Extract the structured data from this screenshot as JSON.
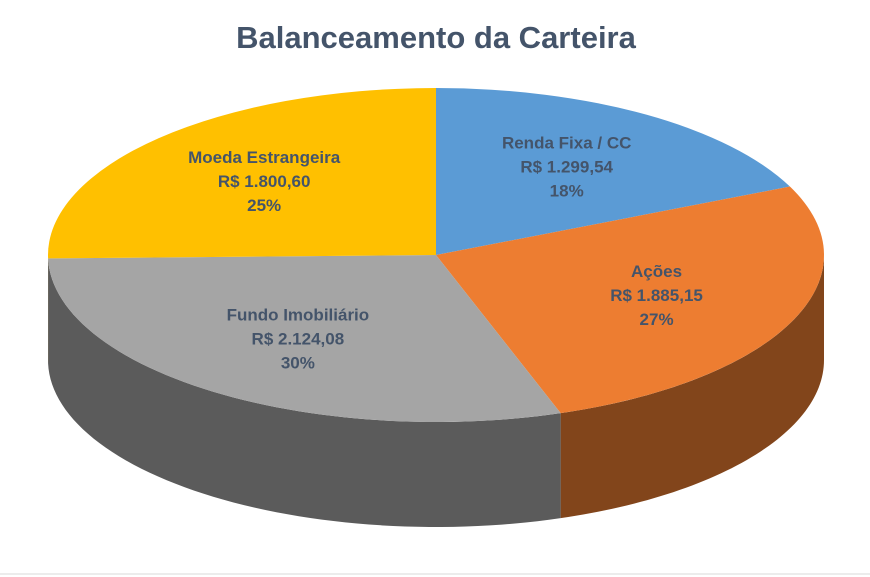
{
  "chart_data": {
    "type": "pie3d",
    "title": "Balanceamento da Carteira",
    "categories": [
      "Renda Fixa / CC",
      "Ações",
      "Fundo Imobiliário",
      "Moeda Estrangeira"
    ],
    "values": [
      1299.54,
      1885.15,
      2124.08,
      1800.6
    ],
    "value_labels": [
      "R$ 1.299,54",
      "R$ 1.885,15",
      "R$ 2.124,08",
      "R$ 1.800,60"
    ],
    "percent_labels": [
      "18%",
      "27%",
      "30%",
      "25%"
    ],
    "colors": [
      "#5b9bd5",
      "#ed7d31",
      "#a5a5a5",
      "#ffc000"
    ]
  }
}
